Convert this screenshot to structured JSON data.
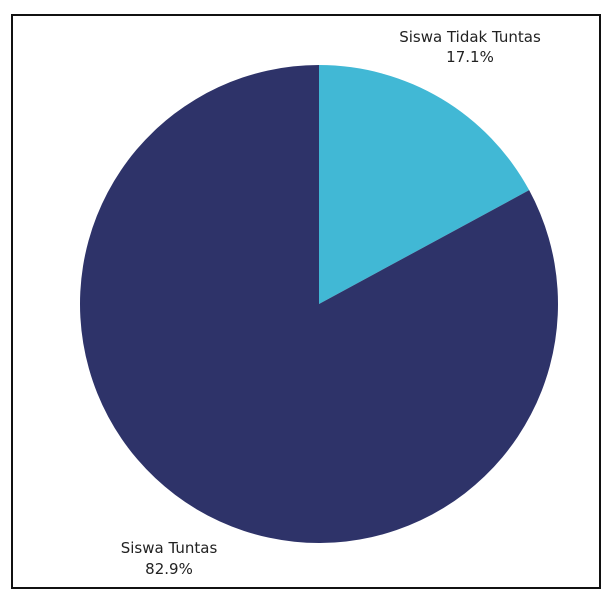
{
  "chart_data": {
    "type": "pie",
    "title": "",
    "slices": [
      {
        "label": "Siswa Tidak Tuntas",
        "value": 17.1,
        "value_label": "17.1%",
        "color": "#41b8d5"
      },
      {
        "label": "Siswa Tuntas",
        "value": 82.9,
        "value_label": "82.9%",
        "color": "#2e3369"
      }
    ],
    "start_angle": "12 o'clock",
    "direction": "clockwise",
    "legend": "none"
  }
}
